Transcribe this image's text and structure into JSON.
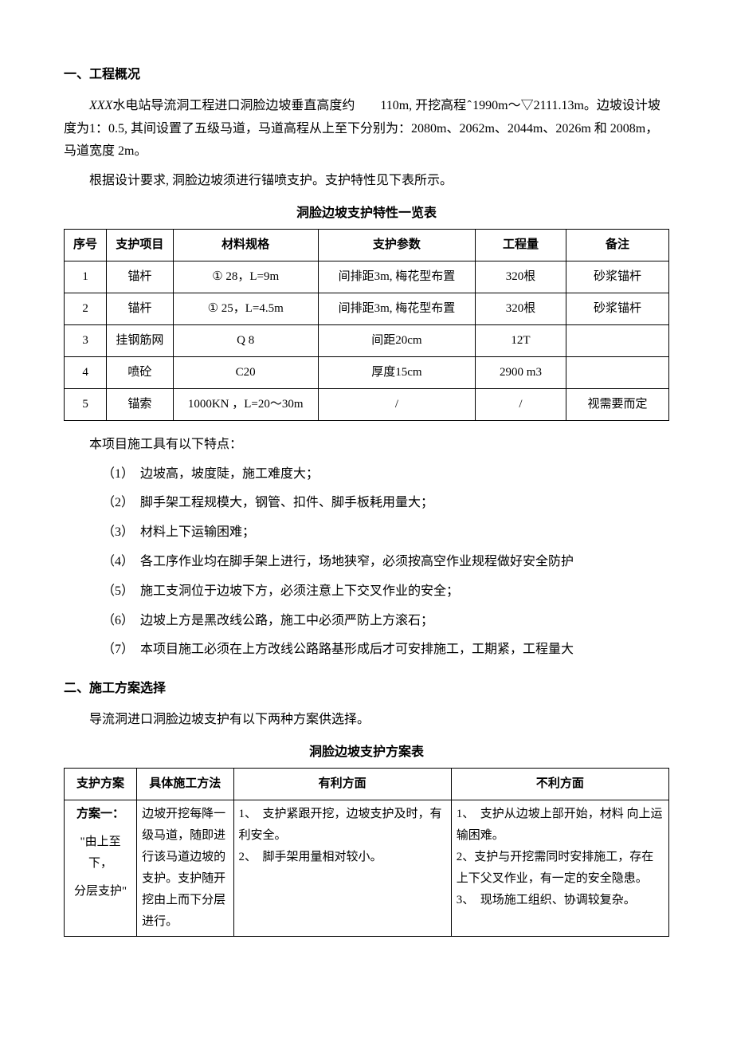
{
  "section1": {
    "heading": "一、工程概况",
    "p1_prefix": "XXX",
    "p1_rest": "水电站导流洞工程进口洞脸边坡垂直高度约　　110m, 开挖高程 ̂  1990m～▽2111.13m。边坡设计坡度为1：0.5, 其间设置了五级马道，马道高程从上至下分别为：2080m、2062m、2044m、2026m 和 2008m，马道宽度 2m。",
    "p2": "根据设计要求, 洞脸边坡须进行锚喷支护。支护特性见下表所示。"
  },
  "table1": {
    "title": "洞脸边坡支护特性一览表",
    "headers": [
      "序号",
      "支护项目",
      "材料规格",
      "支护参数",
      "工程量",
      "备注"
    ],
    "rows": [
      [
        "1",
        "锚杆",
        "① 28，L=9m",
        "间排距3m, 梅花型布置",
        "320根",
        "砂浆锚杆"
      ],
      [
        "2",
        "锚杆",
        "① 25，L=4.5m",
        "间排距3m, 梅花型布置",
        "320根",
        "砂浆锚杆"
      ],
      [
        "3",
        "挂钢筋网",
        "Q 8",
        "间距20cm",
        "12T",
        ""
      ],
      [
        "4",
        "喷砼",
        "C20",
        "厚度15cm",
        "2900 m3",
        ""
      ],
      [
        "5",
        "锚索",
        "1000KN ，L=20～30m",
        "/",
        "/",
        "视需要而定"
      ]
    ],
    "col_widths": [
      "7%",
      "11%",
      "24%",
      "26%",
      "15%",
      "17%"
    ]
  },
  "features": {
    "intro": "本项目施工具有以下特点：",
    "items": [
      "（1）　边坡高，坡度陡，施工难度大；",
      "（2）　脚手架工程规模大，钢管、扣件、脚手板耗用量大；",
      "（3）　材料上下运输困难；",
      "（4）　各工序作业均在脚手架上进行，场地狭窄，必须按高空作业规程做好安全防护",
      "（5）　施工支洞位于边坡下方，必须注意上下交叉作业的安全；",
      "（6）　边坡上方是黑改线公路，施工中必须严防上方滚石；",
      "（7）　本项目施工必须在上方改线公路路基形成后才可安排施工，工期紧，工程量大"
    ]
  },
  "section2": {
    "heading": "二、施工方案选择",
    "p1": "导流洞进口洞脸边坡支护有以下两种方案供选择。"
  },
  "table2": {
    "title": "洞脸边坡支护方案表",
    "headers": [
      "支护方案",
      "具体施工方法",
      "有利方面",
      "不利方面"
    ],
    "col_widths": [
      "12%",
      "16%",
      "36%",
      "36%"
    ],
    "row1": {
      "scheme_name": "方案一：",
      "scheme_desc1": "\"由上至下，",
      "scheme_desc2": "分层支护\"",
      "method": "边坡开挖每降一级马道，随即进行该马道边坡的支护。支护随开挖由上而下分层进行。",
      "pros": "1、　支护紧跟开挖，边坡支护及时，有 利安全。\n2、　脚手架用量相对较小。",
      "cons": "1、　支护从边坡上部开始，材料 向上运输困难。\n2、支护与开挖需同时安排施工，存在上下父叉作业，有一定的安全隐患。\n3、　现场施工组织、协调较复杂。"
    }
  }
}
